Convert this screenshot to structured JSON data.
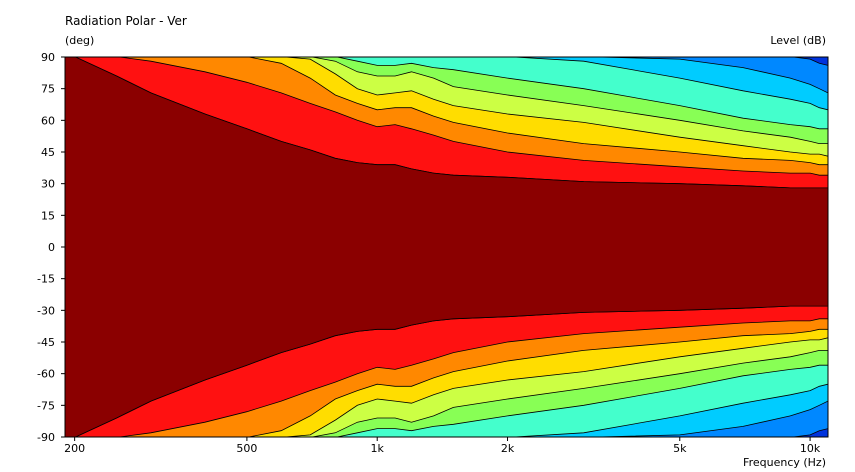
{
  "chart_data": {
    "type": "heatmap",
    "title": "Radiation Polar - Ver",
    "ylabel": "(deg)",
    "xlabel": "Frequency  (Hz)",
    "colorbar_label": "Level  (dB)",
    "x_scale": "log",
    "xlim": [
      190,
      11000
    ],
    "ylim": [
      -90,
      90
    ],
    "x_ticks": [
      {
        "value": 200,
        "label": "200"
      },
      {
        "value": 500,
        "label": "500"
      },
      {
        "value": 1000,
        "label": "1k"
      },
      {
        "value": 2000,
        "label": "2k"
      },
      {
        "value": 5000,
        "label": "5k"
      },
      {
        "value": 10000,
        "label": "10k"
      }
    ],
    "y_ticks": [
      90,
      75,
      60,
      45,
      30,
      15,
      0,
      -15,
      -30,
      -45,
      -60,
      -75,
      -90
    ],
    "grid": false,
    "contour_levels_from_outer_to_inner": [
      {
        "color": "#0033dd"
      },
      {
        "color": "#0088ff"
      },
      {
        "color": "#00ccff"
      },
      {
        "color": "#44ffcc"
      },
      {
        "color": "#88ff55"
      },
      {
        "color": "#ccff44"
      },
      {
        "color": "#ffdd00"
      },
      {
        "color": "#ff8800"
      },
      {
        "color": "#ff1111"
      },
      {
        "color": "#8b0000"
      }
    ],
    "frequencies": [
      190,
      200,
      250,
      300,
      400,
      500,
      600,
      700,
      800,
      900,
      1000,
      1100,
      1200,
      1350,
      1500,
      2000,
      3000,
      5000,
      7000,
      9000,
      10000,
      10500,
      11000
    ],
    "contour_angles_deg": [
      {
        "level_index": 1,
        "angles": [
          90.2,
          90.2,
          90.2,
          90.2,
          90.2,
          90.2,
          90.2,
          90.2,
          90.2,
          90.2,
          90.2,
          90.2,
          90.2,
          90.2,
          90.2,
          90.2,
          90.2,
          90.2,
          90.2,
          90.2,
          89,
          87,
          86
        ]
      },
      {
        "level_index": 2,
        "angles": [
          90.2,
          90.2,
          90.2,
          90.2,
          90.2,
          90.2,
          90.2,
          90.2,
          90.2,
          90.2,
          90.2,
          90.2,
          90.2,
          90.2,
          90.2,
          90.2,
          90.2,
          89,
          85,
          80,
          77,
          75,
          73
        ]
      },
      {
        "level_index": 3,
        "angles": [
          90.2,
          90.2,
          90.2,
          90.2,
          90.2,
          90.2,
          90.2,
          90.2,
          90.2,
          90.2,
          90.2,
          90.2,
          90.2,
          90.2,
          90.2,
          90.2,
          88,
          80,
          74,
          70,
          68,
          66,
          65
        ]
      },
      {
        "level_index": 4,
        "angles": [
          90.2,
          90.2,
          90.2,
          90.2,
          90.2,
          90.2,
          90.2,
          90.2,
          90.2,
          88,
          86,
          86,
          87,
          85,
          84,
          80,
          75,
          67,
          61,
          58,
          57,
          56,
          56
        ]
      },
      {
        "level_index": 5,
        "angles": [
          90.2,
          90.2,
          90.2,
          90.2,
          90.2,
          90.2,
          90.2,
          90.2,
          88,
          83,
          81,
          81,
          83,
          80,
          76,
          72,
          67,
          60,
          55,
          52,
          50,
          49,
          49
        ]
      },
      {
        "level_index": 6,
        "angles": [
          90.2,
          90.2,
          90.2,
          90.2,
          90.2,
          90.2,
          90.2,
          89,
          82,
          75,
          72,
          73,
          74,
          70,
          67,
          63,
          59,
          52,
          48,
          45,
          44,
          44,
          43
        ]
      },
      {
        "level_index": 7,
        "angles": [
          90.2,
          90.2,
          90.2,
          90.2,
          90.2,
          90.2,
          87,
          80,
          72,
          68,
          65,
          66,
          66,
          62,
          59,
          54,
          49,
          45,
          42,
          41,
          40,
          39,
          39
        ]
      },
      {
        "level_index": 8,
        "angles": [
          90.2,
          90.2,
          90.2,
          88,
          83,
          78,
          73,
          68,
          64,
          60,
          57,
          58,
          56,
          53,
          50,
          45,
          41,
          38,
          36,
          35,
          35,
          34,
          34
        ]
      },
      {
        "level_index": 9,
        "angles": [
          90.2,
          90.2,
          81,
          73,
          63,
          56,
          50,
          46,
          42,
          40,
          39,
          39,
          37,
          35,
          34,
          33,
          31,
          30,
          29,
          28,
          28,
          28,
          28
        ]
      }
    ]
  }
}
